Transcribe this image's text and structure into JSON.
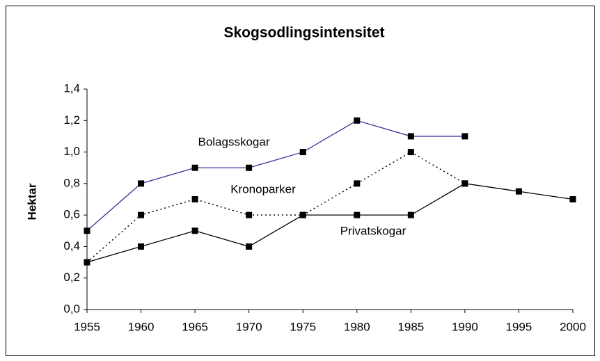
{
  "chart_data": {
    "type": "line",
    "title": "Skogsodlingsintensitet",
    "ylabel": "Hektar",
    "x": [
      1955,
      1960,
      1965,
      1970,
      1975,
      1980,
      1985,
      1990,
      1995,
      2000
    ],
    "xlim": [
      1955,
      2000
    ],
    "xticks": [
      1955,
      1960,
      1965,
      1970,
      1975,
      1980,
      1985,
      1990,
      1995,
      2000
    ],
    "ylim": [
      0,
      1.4
    ],
    "yticks": [
      {
        "value": 0,
        "label": "0,0"
      },
      {
        "value": 0.2,
        "label": "0,2"
      },
      {
        "value": 0.4,
        "label": "0,4"
      },
      {
        "value": 0.6,
        "label": "0,6"
      },
      {
        "value": 0.8,
        "label": "0,8"
      },
      {
        "value": 1.0,
        "label": "1,0"
      },
      {
        "value": 1.2,
        "label": "1,2"
      },
      {
        "value": 1.4,
        "label": "1,4"
      }
    ],
    "grid": false,
    "series": [
      {
        "name": "Bolagsskogar",
        "color": "#333399",
        "style": "solid",
        "values": [
          0.5,
          0.8,
          0.9,
          0.9,
          1.0,
          1.2,
          1.1,
          1.1,
          null,
          null
        ]
      },
      {
        "name": "Kronoparker",
        "color": "#000000",
        "style": "dotted",
        "values": [
          0.3,
          0.6,
          0.7,
          0.6,
          0.6,
          0.8,
          1.0,
          0.8,
          null,
          null
        ]
      },
      {
        "name": "Privatskogar",
        "color": "#000000",
        "style": "solid",
        "values": [
          0.3,
          0.4,
          0.5,
          0.4,
          0.6,
          0.6,
          0.6,
          0.8,
          0.75,
          0.7
        ]
      }
    ]
  }
}
